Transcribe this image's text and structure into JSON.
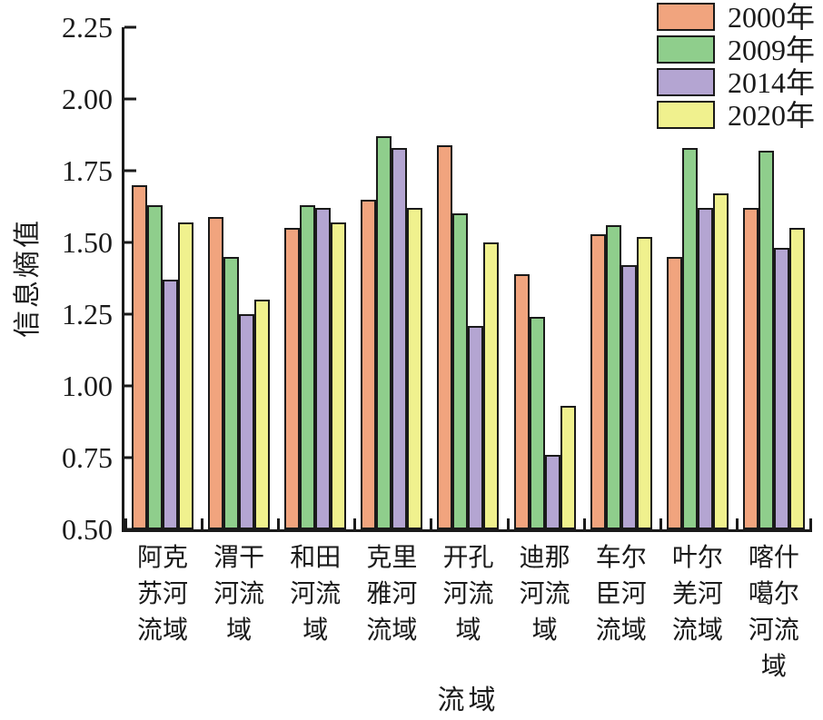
{
  "figure": {
    "y_axis_title": "信息熵值",
    "x_axis_title": "流域"
  },
  "chart_data": {
    "type": "bar",
    "title": "",
    "xlabel": "流域",
    "ylabel": "信息熵值",
    "ylim": [
      0.5,
      2.25
    ],
    "ytick_step": 0.25,
    "ytick_labels": [
      "2.25",
      "2.00",
      "1.75",
      "1.50",
      "1.25",
      "1.00",
      "0.75",
      "0.50"
    ],
    "grid": false,
    "legend_position": "top-right",
    "axis_color": "#1a1a1a",
    "bar_border_color": "#1a1a1a",
    "categories": [
      "阿克苏河流域",
      "渭干河流域",
      "和田河流域",
      "克里雅河流域",
      "开孔河流域",
      "迪那河流域",
      "车尔臣河流域",
      "叶尔羌河流域",
      "喀什噶尔河流域"
    ],
    "categories_lines": [
      [
        "阿克",
        "苏河",
        "流域"
      ],
      [
        "渭干",
        "河流",
        "域"
      ],
      [
        "和田",
        "河流",
        "域"
      ],
      [
        "克里",
        "雅河",
        "流域"
      ],
      [
        "开孔",
        "河流",
        "域"
      ],
      [
        "迪那",
        "河流",
        "域"
      ],
      [
        "车尔",
        "臣河",
        "流域"
      ],
      [
        "叶尔",
        "羌河",
        "流域"
      ],
      [
        "喀什",
        "噶尔",
        "河流",
        "域"
      ]
    ],
    "series": [
      {
        "name": "2000年",
        "color": "#F1A47E",
        "values": [
          1.7,
          1.59,
          1.55,
          1.65,
          1.84,
          1.39,
          1.53,
          1.45,
          1.62
        ]
      },
      {
        "name": "2009年",
        "color": "#8FCE8C",
        "values": [
          1.63,
          1.45,
          1.63,
          1.87,
          1.6,
          1.24,
          1.56,
          1.83,
          1.82
        ]
      },
      {
        "name": "2014年",
        "color": "#B4A5D2",
        "values": [
          1.37,
          1.25,
          1.62,
          1.83,
          1.21,
          0.76,
          1.42,
          1.62,
          1.48
        ]
      },
      {
        "name": "2020年",
        "color": "#F0F18E",
        "values": [
          1.57,
          1.3,
          1.57,
          1.62,
          1.5,
          0.93,
          1.52,
          1.67,
          1.55
        ]
      }
    ]
  }
}
